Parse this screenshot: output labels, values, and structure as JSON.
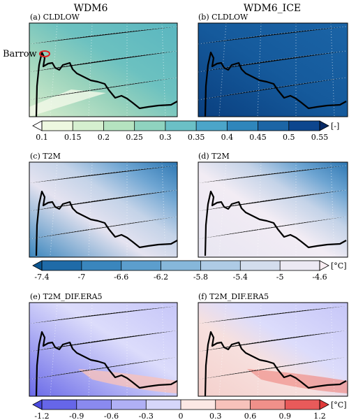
{
  "column_titles": [
    "WDM6",
    "WDM6_ICE"
  ],
  "panels": [
    {
      "label": "(a) CLDLOW"
    },
    {
      "label": "(b) CLDLOW"
    },
    {
      "label": "(c) T2M"
    },
    {
      "label": "(d) T2M"
    },
    {
      "label": "(e) T2M_DIF.ERA5"
    },
    {
      "label": "(f) T2M_DIF.ERA5"
    }
  ],
  "annotation": "Barrow",
  "colorbars": [
    {
      "ticks": [
        0.1,
        0.15,
        0.2,
        0.25,
        0.3,
        0.35,
        0.4,
        0.45,
        0.5,
        0.55
      ],
      "unit": "[-]",
      "colors": [
        "#ffffff",
        "#eef8e0",
        "#d5efcf",
        "#b5e3c0",
        "#8fd3bf",
        "#6bc0c6",
        "#4ba5c9",
        "#2f86bb",
        "#1c65a5",
        "#0d468e",
        "#082a66"
      ]
    },
    {
      "ticks": [
        -7.4,
        -7,
        -6.6,
        -6.2,
        -5.8,
        -5.4,
        -5,
        -4.6
      ],
      "unit": "[°C]",
      "colors": [
        "#0b5590",
        "#1f6ba8",
        "#3a86bd",
        "#5c9ecd",
        "#86b7da",
        "#aecbe5",
        "#d3dded",
        "#ece9f3",
        "#fbeef3"
      ]
    },
    {
      "ticks": [
        -1.2,
        -0.9,
        -0.6,
        -0.3,
        0,
        0.3,
        0.6,
        0.9,
        1.2
      ],
      "unit": "[°C]",
      "colors": [
        "#4a4ae0",
        "#6666e8",
        "#8a8aef",
        "#b0b0f5",
        "#d6d6fa",
        "#fce8e4",
        "#f7c2bb",
        "#f0908a",
        "#e85a5a",
        "#e03a3a"
      ]
    }
  ]
}
